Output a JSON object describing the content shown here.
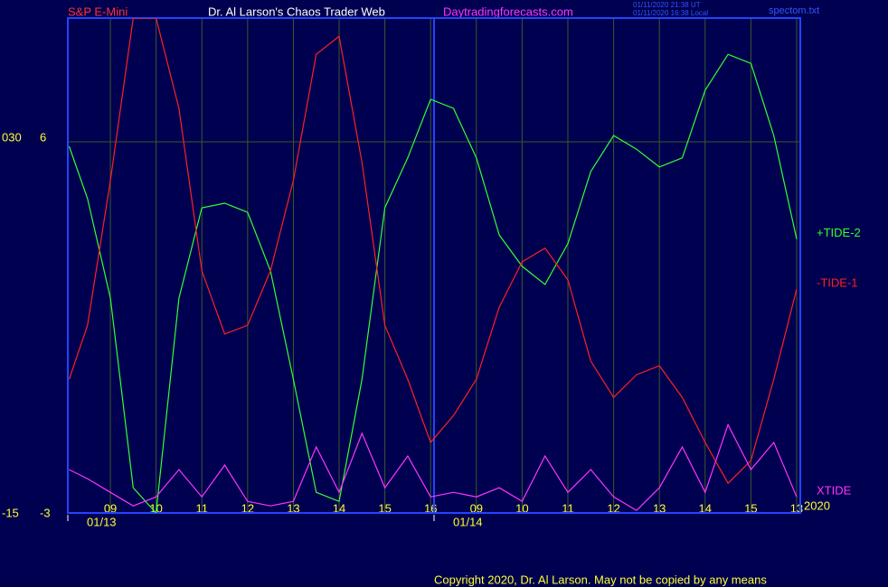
{
  "chart_data": {
    "type": "line",
    "header": {
      "left": "S&P E-Mini",
      "center": "Dr. Al Larson's Chaos Trader Web",
      "site": "Daytradingforecasts.com",
      "time_ut": "01/11/2020 21:38 UT",
      "time_local": "01/11/2020 16:38 Local",
      "file": "spectom.txt"
    },
    "dates": [
      "01/13",
      "01/14"
    ],
    "year": "2020",
    "footer": "Copyright 2020, Dr. Al Larson. May not be copied by any means",
    "x": [
      0.1,
      0.5,
      1,
      1.5,
      2,
      2.5,
      3,
      3.5,
      4,
      4.5,
      5,
      5.5,
      6,
      6.5,
      7,
      7.5,
      8,
      8.5,
      9,
      9.5,
      10,
      10.5,
      11,
      11.5,
      12,
      12.5,
      13,
      13.5,
      14,
      14.5,
      15,
      15.5,
      16
    ],
    "xlim": [
      0.07,
      16.08
    ],
    "xticks": [
      {
        "value": 1,
        "label": "09"
      },
      {
        "value": 2,
        "label": "10"
      },
      {
        "value": 3,
        "label": "11"
      },
      {
        "value": 4,
        "label": "12"
      },
      {
        "value": 5,
        "label": "13"
      },
      {
        "value": 6,
        "label": "14"
      },
      {
        "value": 7,
        "label": "15"
      },
      {
        "value": 8,
        "label": "16"
      },
      {
        "value": 9,
        "label": "09"
      },
      {
        "value": 10,
        "label": "10"
      },
      {
        "value": 11,
        "label": "11"
      },
      {
        "value": 12,
        "label": "12"
      },
      {
        "value": 13,
        "label": "13"
      },
      {
        "value": 14,
        "label": "14"
      },
      {
        "value": 15,
        "label": "15"
      },
      {
        "value": 16,
        "label": "13"
      }
    ],
    "ylim": [
      -3,
      9
    ],
    "yticks": [
      -3,
      6
    ],
    "y2lim": [
      -15,
      45
    ],
    "y2ticks": [
      -15,
      {
        "value": 30,
        "label": "030"
      }
    ],
    "grid": true,
    "series": [
      {
        "name": "+TIDE-2",
        "color": "#33ff33",
        "values": [
          5.89,
          4.62,
          2.21,
          -2.39,
          -3.0,
          2.21,
          4.4,
          4.51,
          4.29,
          2.87,
          0.24,
          -2.5,
          -2.72,
          0.24,
          4.4,
          5.61,
          7.03,
          6.81,
          5.61,
          3.74,
          2.98,
          2.54,
          3.53,
          5.28,
          6.15,
          5.82,
          5.39,
          5.61,
          7.25,
          8.12,
          7.9,
          6.15,
          3.64
        ]
      },
      {
        "name": "-TIDE-1",
        "color": "#ff2020",
        "values": [
          0.24,
          1.55,
          5.06,
          9.0,
          9.0,
          6.81,
          2.87,
          1.34,
          1.55,
          2.87,
          5.06,
          8.12,
          8.56,
          5.5,
          1.55,
          0.24,
          -1.29,
          -0.64,
          0.24,
          1.99,
          3.09,
          3.42,
          2.65,
          0.68,
          -0.2,
          0.35,
          0.57,
          -0.2,
          -1.29,
          -2.28,
          -1.73,
          0.24,
          2.43
        ]
      },
      {
        "name": "XTIDE",
        "color": "#ff33ff",
        "values": [
          -1.95,
          -2.17,
          -2.5,
          -2.83,
          -2.61,
          -1.95,
          -2.61,
          -1.84,
          -2.72,
          -2.83,
          -2.72,
          -1.4,
          -2.5,
          -1.07,
          -2.39,
          -1.62,
          -2.61,
          -2.5,
          -2.61,
          -2.39,
          -2.72,
          -1.62,
          -2.5,
          -1.95,
          -2.61,
          -2.94,
          -2.39,
          -1.4,
          -2.5,
          -0.86,
          -1.95,
          -1.29,
          -2.61
        ]
      }
    ]
  }
}
